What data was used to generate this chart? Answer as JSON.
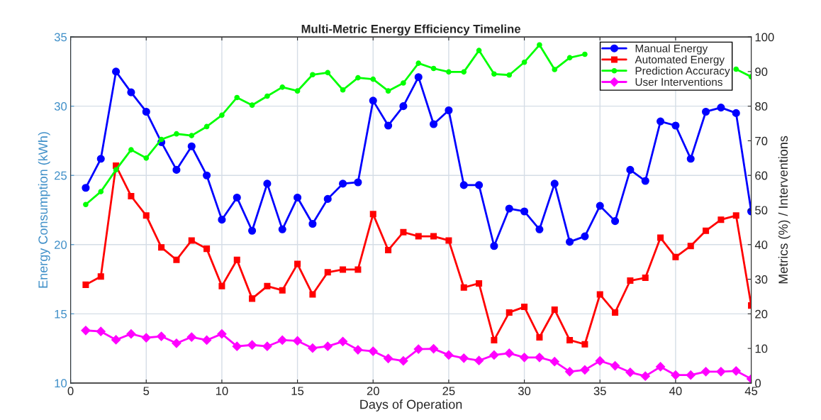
{
  "chart_data": {
    "type": "line",
    "title": "Multi-Metric Energy Efficiency Timeline",
    "xlabel": "Days of Operation",
    "ylabel": "Energy Consumption (kWh)",
    "y2label": "Metrics (%) / Interventions",
    "x": [
      1,
      2,
      3,
      4,
      5,
      6,
      7,
      8,
      9,
      10,
      11,
      12,
      13,
      14,
      15,
      16,
      17,
      18,
      19,
      20,
      21,
      22,
      23,
      24,
      25,
      26,
      27,
      28,
      29,
      30,
      31,
      32,
      33,
      34,
      35,
      36,
      37,
      38,
      39,
      40,
      41,
      42,
      43,
      44,
      45
    ],
    "series": [
      {
        "name": "Manual Energy",
        "color": "#0000ff",
        "marker": "circle",
        "values": [
          24.1,
          26.2,
          32.5,
          31.0,
          29.6,
          27.4,
          25.4,
          27.1,
          25.0,
          21.8,
          23.4,
          21.0,
          24.4,
          21.1,
          23.4,
          21.5,
          23.3,
          24.4,
          24.5,
          30.4,
          28.6,
          30.0,
          32.1,
          28.7,
          29.7,
          24.3,
          24.3,
          19.9,
          22.6,
          22.4,
          21.1,
          24.4,
          20.2,
          20.6,
          22.8,
          21.7,
          25.4,
          24.6,
          28.9,
          28.6,
          26.2,
          29.6,
          29.9,
          29.5,
          22.4
        ]
      },
      {
        "name": "Automated Energy",
        "color": "#ff0000",
        "marker": "square",
        "values": [
          17.1,
          17.7,
          25.7,
          23.5,
          22.1,
          19.8,
          18.9,
          20.3,
          19.7,
          17.0,
          18.9,
          16.1,
          17.0,
          16.7,
          18.6,
          16.4,
          18.0,
          18.2,
          18.2,
          22.2,
          19.6,
          20.9,
          20.6,
          20.6,
          20.3,
          16.9,
          17.2,
          13.1,
          15.1,
          15.5,
          13.3,
          15.3,
          13.1,
          12.8,
          16.4,
          15.1,
          17.4,
          17.6,
          20.5,
          19.1,
          19.9,
          21.0,
          21.8,
          22.1,
          15.6
        ]
      },
      {
        "name": "Prediction Accuracy",
        "color": "#00ff00",
        "marker": "circle",
        "axis": "y2",
        "values": [
          51.6,
          55.3,
          61.6,
          67.4,
          65.0,
          70.4,
          72.0,
          71.5,
          74.1,
          77.4,
          82.5,
          80.3,
          82.9,
          85.5,
          84.4,
          89.1,
          89.7,
          84.7,
          88.2,
          87.8,
          84.4,
          86.7,
          92.4,
          90.9,
          89.9,
          89.9,
          96.1,
          89.3,
          89.0,
          92.7,
          97.7,
          90.6,
          94.0,
          95.0,
          null,
          null,
          null,
          null,
          null,
          null,
          null,
          null,
          null,
          90.7,
          88.5
        ]
      },
      {
        "name": "User Interventions",
        "color": "#ff00ff",
        "marker": "diamond",
        "axis": "y2",
        "values": [
          15.2,
          14.9,
          12.5,
          14.2,
          13.1,
          13.5,
          11.5,
          13.3,
          12.4,
          14.2,
          10.6,
          11.0,
          10.6,
          12.4,
          12.2,
          10.1,
          10.6,
          12.0,
          9.6,
          9.2,
          7.1,
          6.4,
          9.8,
          9.9,
          8.1,
          7.2,
          6.5,
          8.1,
          8.6,
          7.4,
          7.4,
          6.2,
          3.3,
          3.8,
          6.4,
          5.0,
          3.1,
          2.0,
          4.7,
          2.3,
          2.3,
          3.3,
          3.3,
          3.5,
          1.2
        ]
      }
    ],
    "xlim": [
      0,
      45
    ],
    "xticks": [
      0,
      5,
      10,
      15,
      20,
      25,
      30,
      35,
      40,
      45
    ],
    "ylim": [
      10,
      35
    ],
    "yticks": [
      10,
      15,
      20,
      25,
      30,
      35
    ],
    "y2lim": [
      0,
      100
    ],
    "y2ticks": [
      0,
      10,
      20,
      30,
      40,
      50,
      60,
      70,
      80,
      90,
      100
    ],
    "grid": true,
    "legend": "top right",
    "line_style": "solid"
  }
}
